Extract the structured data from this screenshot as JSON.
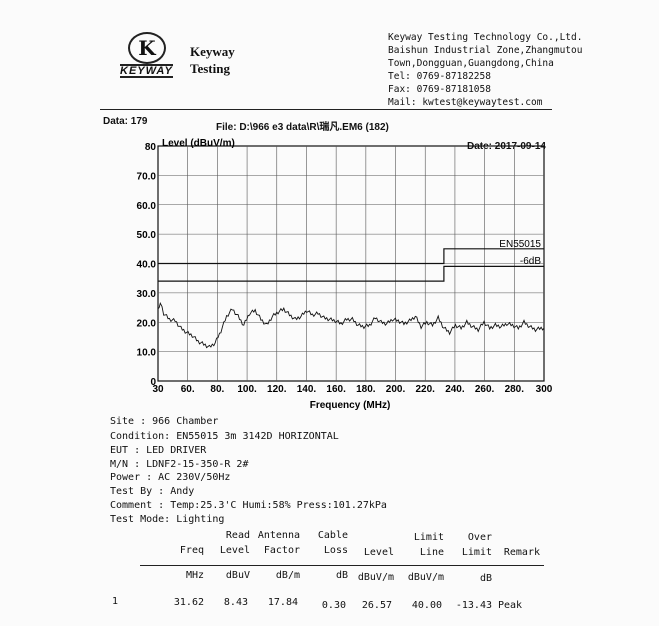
{
  "company": {
    "logo_letter": "K",
    "logo_word": "KEYWAY",
    "brand_line1": "Keyway",
    "brand_line2": "Testing",
    "address_lines": [
      "Keyway Testing Technology Co.,Ltd.",
      "Baishun Industrial Zone,Zhangmutou",
      "Town,Dongguan,Guangdong,China",
      "Tel: 0769-87182258",
      "Fax: 0769-87181058",
      "Mail: kwtest@keywaytest.com"
    ]
  },
  "report": {
    "data_label": "Data: 179",
    "file_label": "File: D:\\966 e3 data\\R\\瑞凡.EM6  (182)",
    "date_label": "Date: 2017-09-14"
  },
  "info": {
    "site": "Site        : 966 Chamber",
    "condition": "Condition: EN55015 3m 3142D HORIZONTAL",
    "eut": "EUT        : LED DRIVER",
    "mn": "M/N         : LDNF2-15-350-R   2#",
    "power": "Power      : AC  230V/50Hz",
    "test_by": "Test By    : Andy",
    "comment": "Comment    : Temp:25.3'C   Humi:58%    Press:101.27kPa",
    "test_mode": "Test Mode: Lighting"
  },
  "table": {
    "h1": {
      "freq": "",
      "read": "Read",
      "ant": "Antenna",
      "cable": "Cable",
      "level": "",
      "limit": "Limit",
      "over": "Over",
      "remark": ""
    },
    "h2": {
      "freq": "Freq",
      "read": "Level",
      "ant": "Factor",
      "cable": "Loss",
      "level": "Level",
      "limit": "Line",
      "over": "Limit",
      "remark": "Remark"
    },
    "units": {
      "freq": "MHz",
      "read": "dBuV",
      "ant": "dB/m",
      "cable": "dB",
      "level": "dBuV/m",
      "limit": "dBuV/m",
      "over": "dB"
    },
    "rows": [
      {
        "no": "1",
        "freq": "31.62",
        "read": "8.43",
        "ant": "17.84",
        "cable": "0.30",
        "level": "26.57",
        "limit": "40.00",
        "over": "-13.43",
        "remark": "Peak"
      }
    ]
  },
  "chart_data": {
    "type": "line",
    "ylabel": "Level (dBuV/m)",
    "xlabel": "Frequency (MHz)",
    "xlim": [
      30,
      300
    ],
    "ylim": [
      0,
      80
    ],
    "grid": true,
    "x_ticks": [
      "30",
      "60.",
      "80.",
      "100.",
      "120.",
      "140.",
      "160.",
      "180.",
      "200.",
      "220.",
      "240.",
      "260.",
      "280.",
      "300"
    ],
    "y_ticks": [
      "0",
      "10.0",
      "20.0",
      "30.0",
      "40.0",
      "50.0",
      "60.0",
      "70.0",
      "80"
    ],
    "series": [
      {
        "name": "EN55015",
        "x": [
          30,
          230,
          230,
          300
        ],
        "y": [
          40,
          40,
          45,
          45
        ]
      },
      {
        "name": "-6dB",
        "x": [
          30,
          230,
          230,
          300
        ],
        "y": [
          34,
          34,
          39,
          39
        ]
      },
      {
        "name": "",
        "x": [
          30,
          31.6,
          34,
          38,
          42,
          46,
          50,
          54,
          58,
          62,
          66,
          70,
          74,
          78,
          82,
          86,
          90,
          94,
          98,
          102,
          106,
          110,
          114,
          118,
          122,
          126,
          130,
          134,
          138,
          142,
          146,
          150,
          154,
          158,
          162,
          166,
          170,
          174,
          178,
          182,
          186,
          190,
          194,
          198,
          202,
          206,
          210,
          214,
          218,
          222,
          226,
          230,
          234,
          238,
          242,
          246,
          250,
          254,
          258,
          262,
          266,
          270,
          274,
          278,
          282,
          286,
          290,
          294,
          298,
          300
        ],
        "y": [
          24,
          26.5,
          23,
          21,
          20.5,
          18,
          16.5,
          15.5,
          13.5,
          12.5,
          11.5,
          13,
          17,
          22,
          24.5,
          22,
          19,
          23,
          24,
          21,
          19,
          22,
          23.5,
          24.5,
          22.5,
          21,
          22,
          24,
          22.5,
          23,
          21.5,
          21,
          20.5,
          19.5,
          21,
          21,
          19,
          18.5,
          19,
          21.5,
          20,
          19.5,
          21,
          20.5,
          19.5,
          20.5,
          22,
          18.5,
          20,
          19,
          21.5,
          18,
          16.5,
          19,
          18,
          20,
          18.5,
          17.5,
          20,
          18,
          19,
          18.5,
          19.5,
          19,
          18,
          20,
          18.5,
          17.5,
          18,
          18
        ]
      }
    ]
  }
}
